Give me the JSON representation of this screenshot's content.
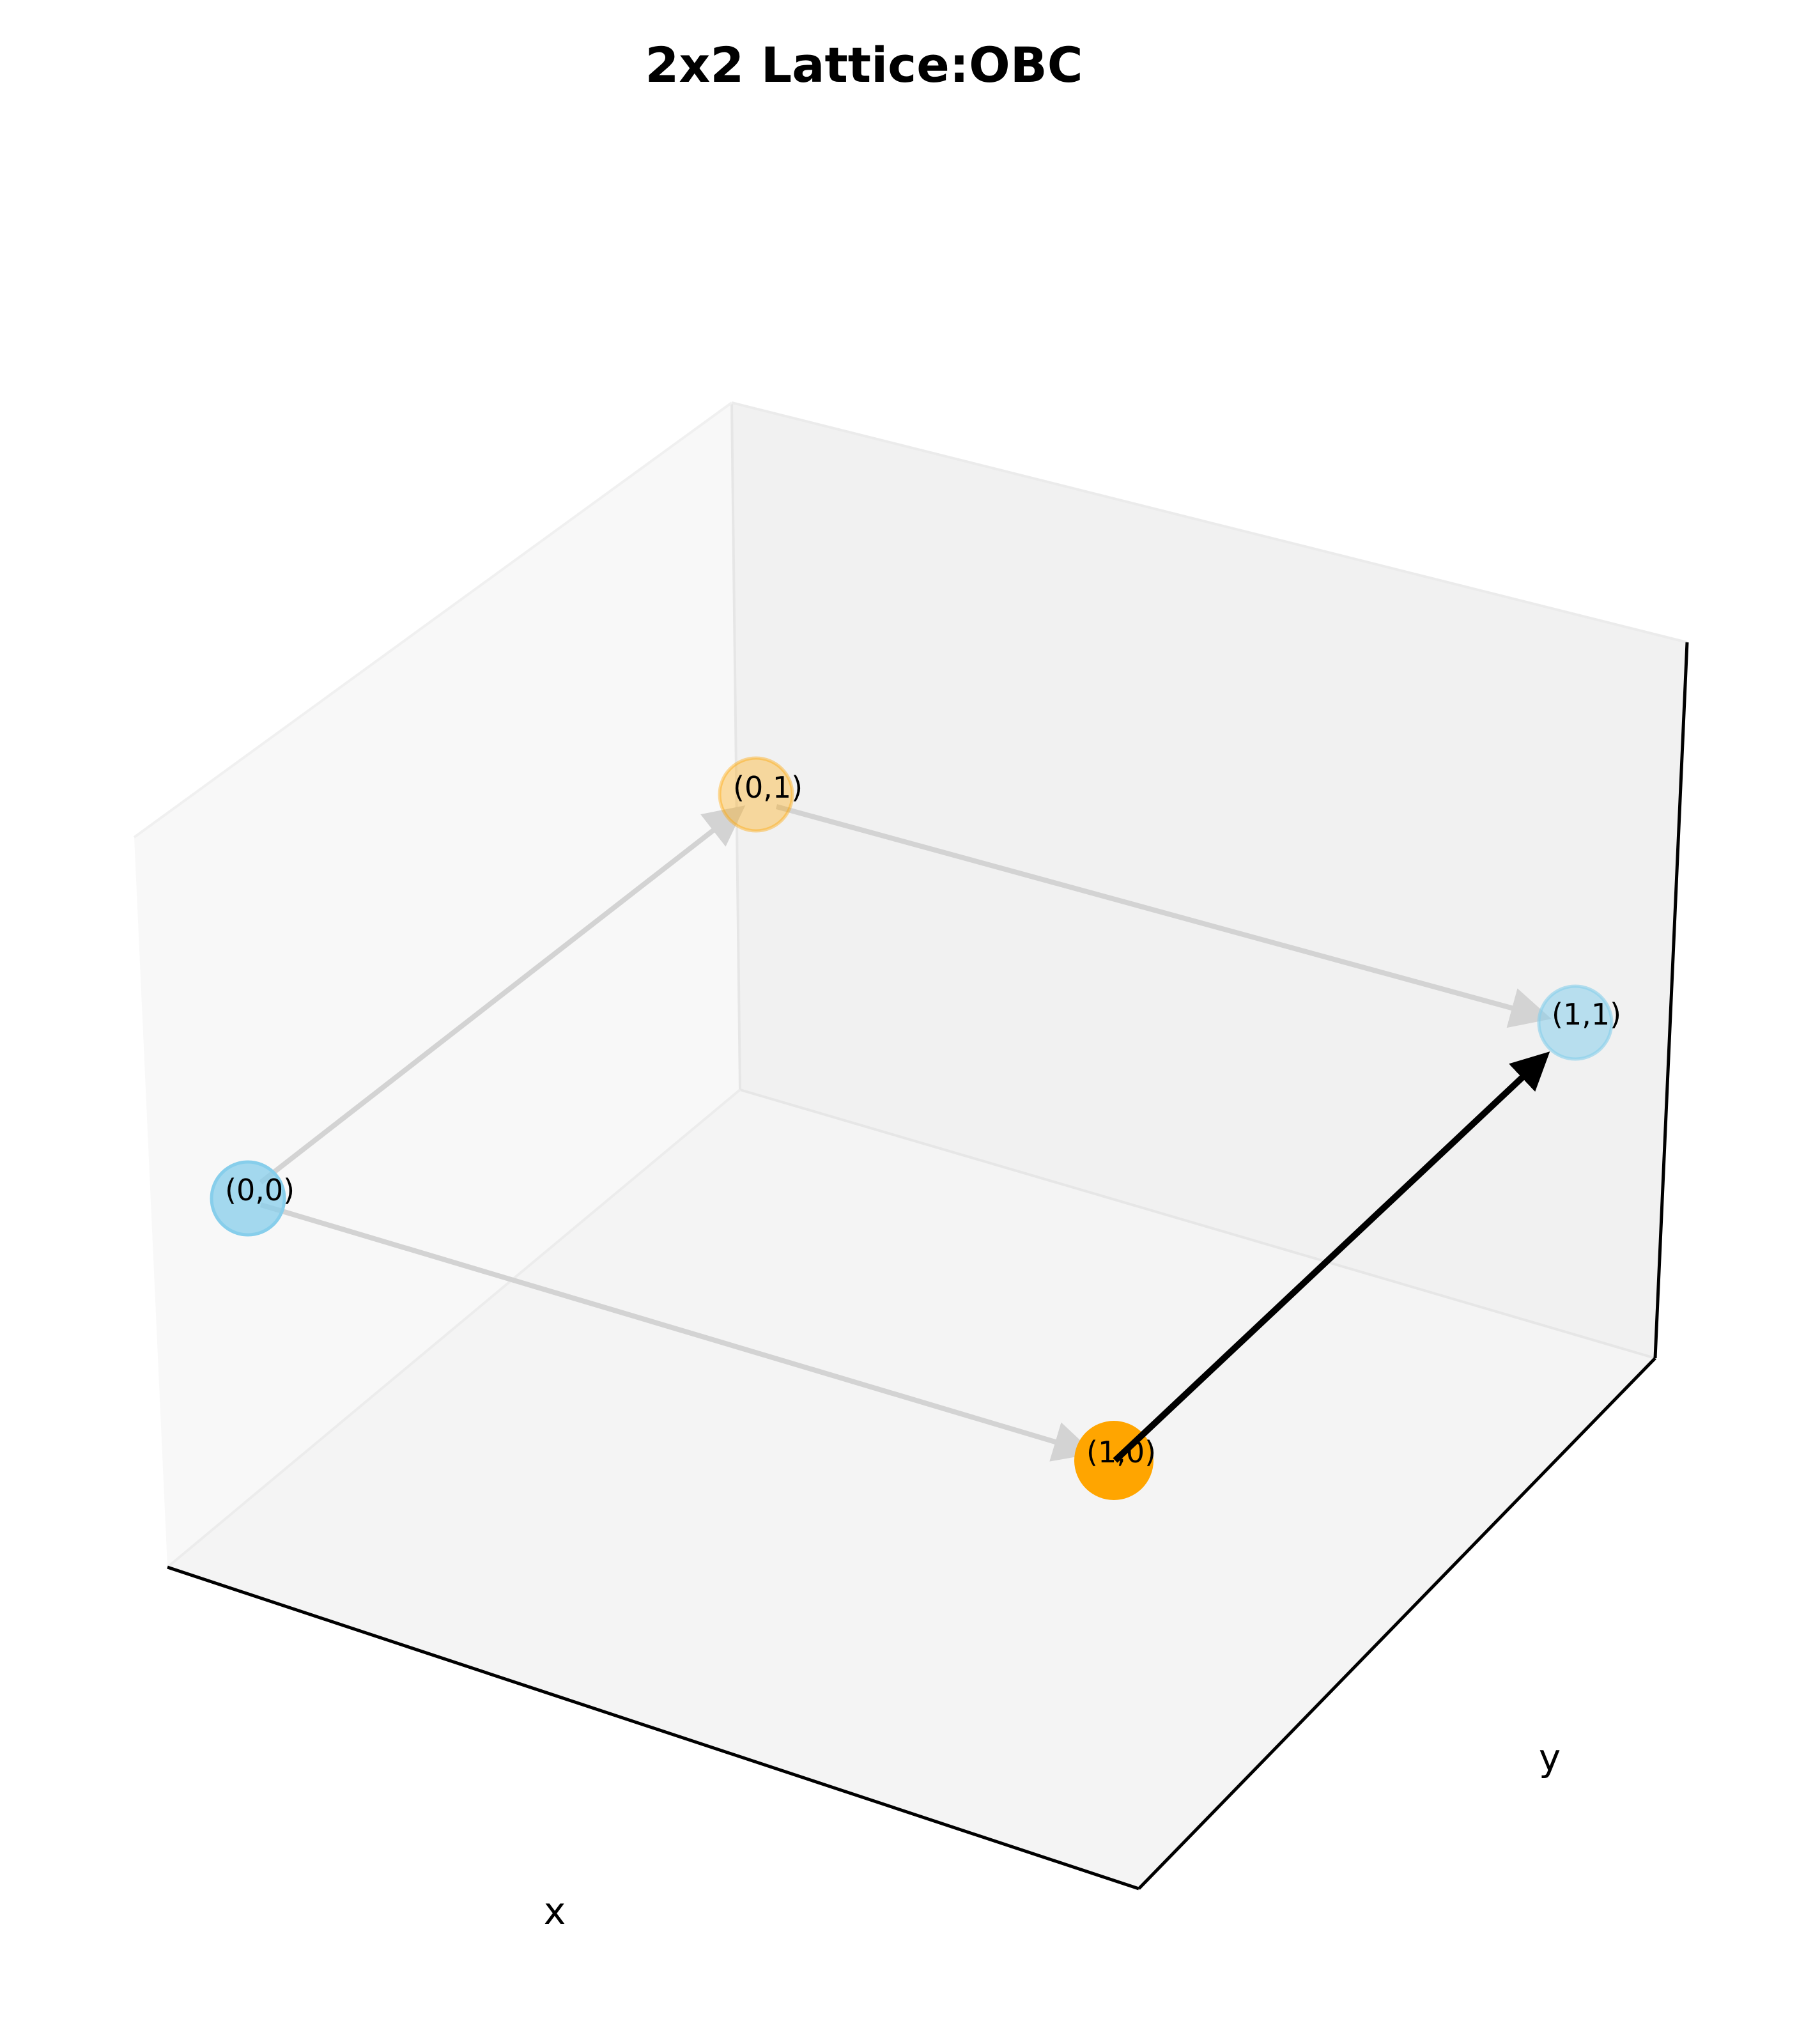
{
  "title": "2x2 Lattice:OBC",
  "axes": {
    "x_label": "x",
    "y_label": "y"
  },
  "colors": {
    "node_blue": "#87ceeb",
    "node_orange": "#ffa500",
    "edge_gray": "#d3d3d3",
    "edge_highlight": "#000000"
  },
  "nodes": [
    {
      "id": "n00",
      "label": "(0,0)",
      "color": "#87ceeb",
      "opacity": 0.75
    },
    {
      "id": "n01",
      "label": "(0,1)",
      "color": "#ffa500",
      "opacity": 0.35
    },
    {
      "id": "n10",
      "label": "(1,0)",
      "color": "#ffa500",
      "opacity": 1.0
    },
    {
      "id": "n11",
      "label": "(1,1)",
      "color": "#87ceeb",
      "opacity": 0.55
    }
  ],
  "edges": [
    {
      "id": "e-00-01",
      "from": "(0,0)",
      "to": "(0,1)",
      "highlight": false
    },
    {
      "id": "e-00-10",
      "from": "(0,0)",
      "to": "(1,0)",
      "highlight": false
    },
    {
      "id": "e-01-11",
      "from": "(0,1)",
      "to": "(1,1)",
      "highlight": false
    },
    {
      "id": "e-10-11",
      "from": "(1,0)",
      "to": "(1,1)",
      "highlight": true
    }
  ]
}
